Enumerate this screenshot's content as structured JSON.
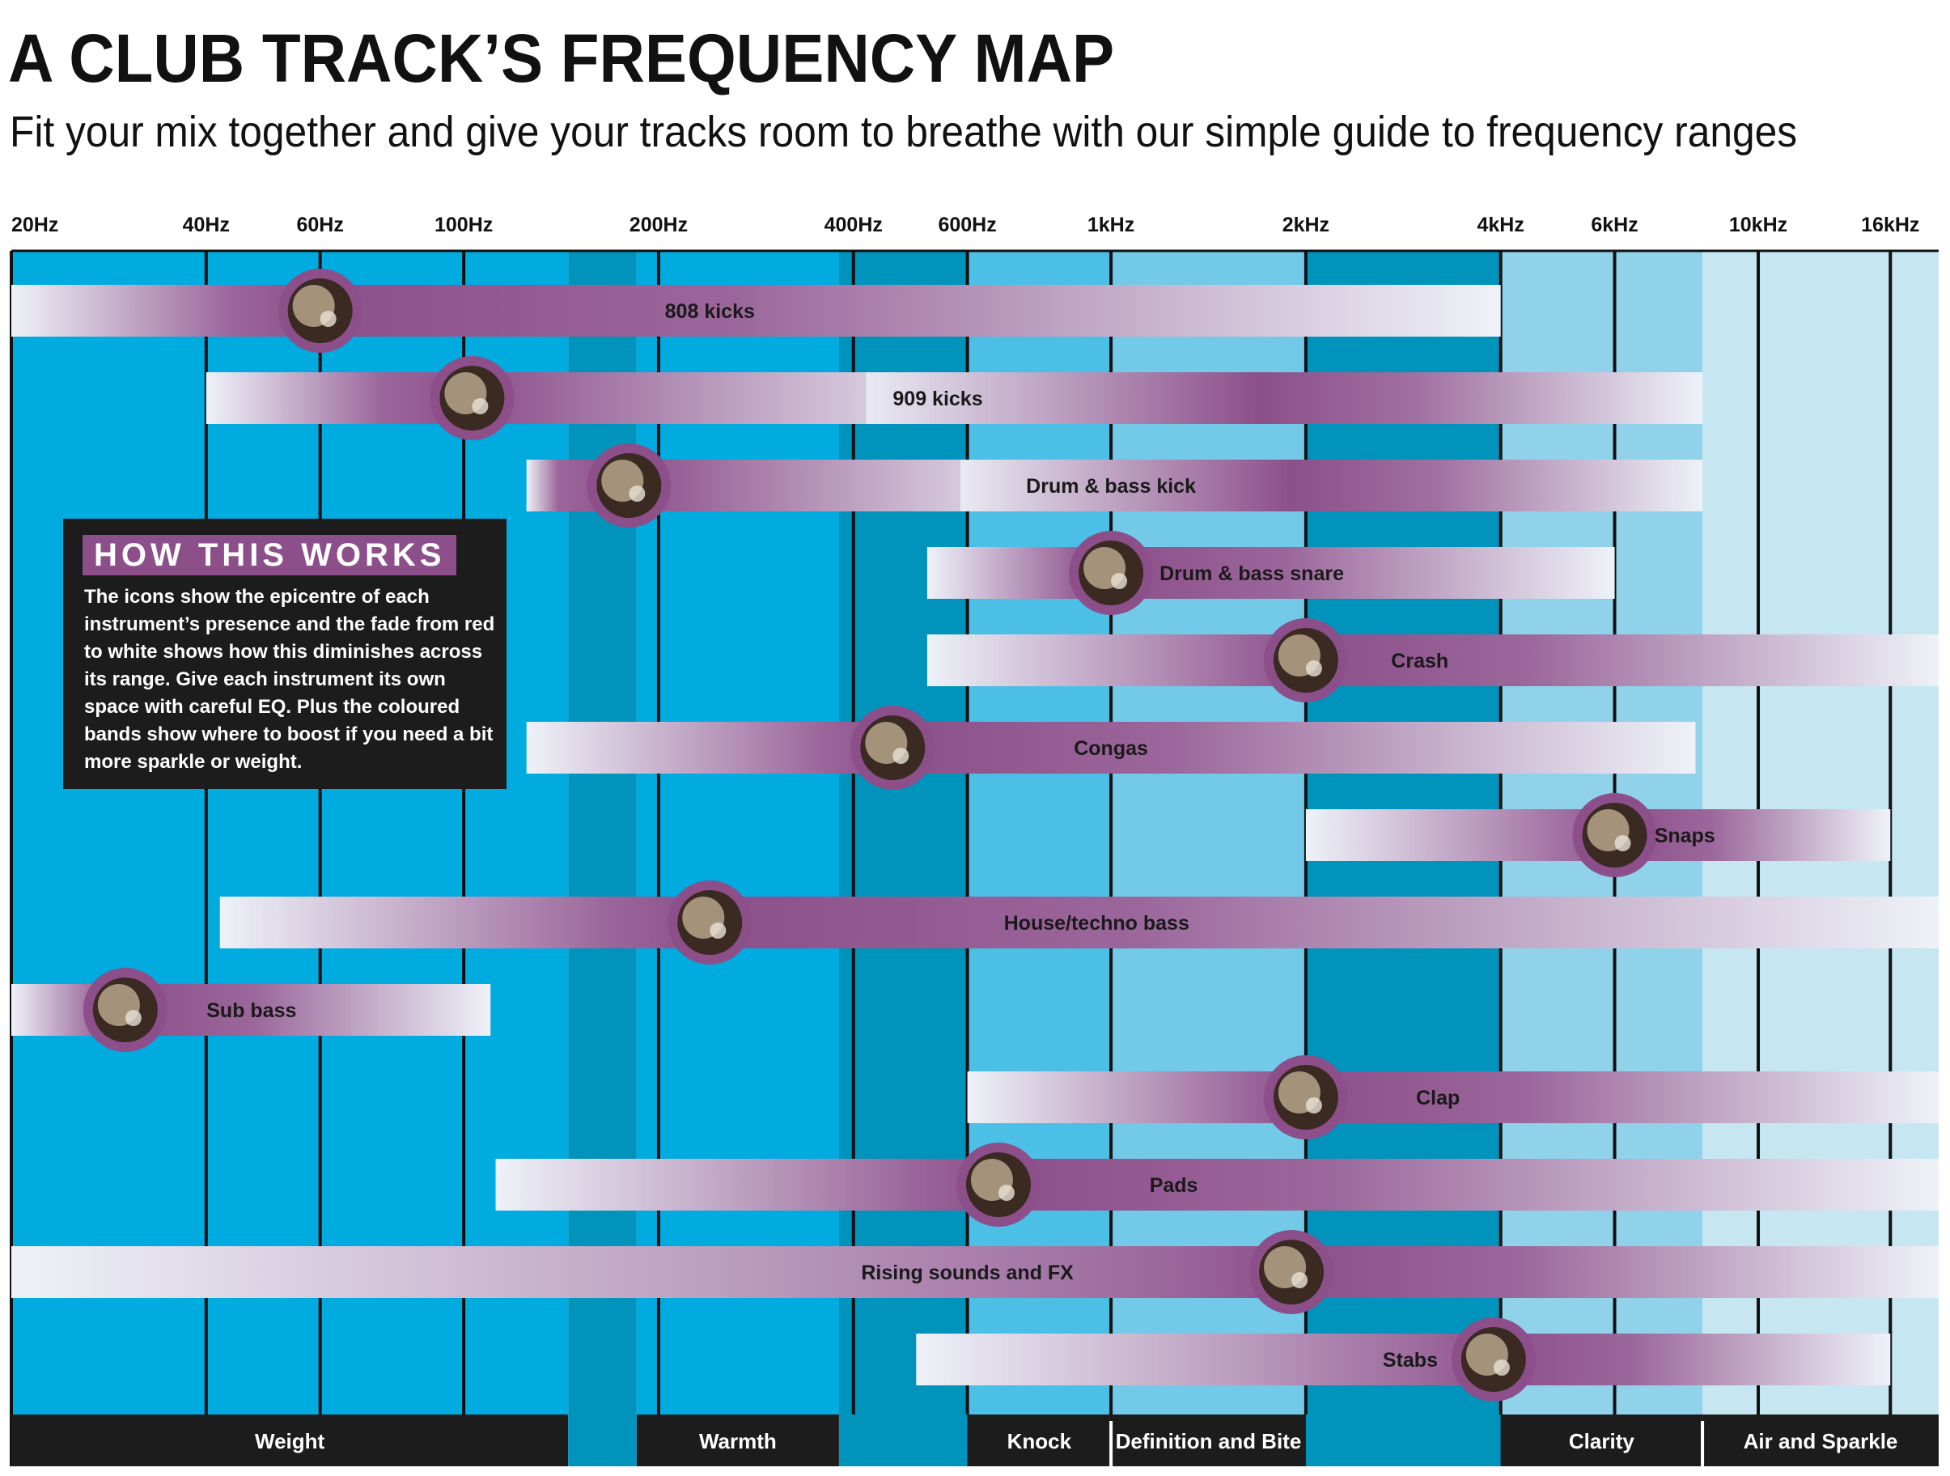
{
  "title": "A CLUB TRACK’S FREQUENCY MAP",
  "subtitle": "Fit your mix together and give your tracks room to breathe with our simple guide to frequency ranges",
  "info_box": {
    "heading": "HOW THIS WORKS",
    "body": "The icons show the epicentre of each instrument’s presence and the fade from red to white shows how this diminishes across its range. Give each instrument its own space with careful EQ. Plus the coloured bands show where to boost if you need a bit more sparkle or weight."
  },
  "colors": {
    "bar_purple": "#8c4f8a",
    "bar_white": "#eef2f8",
    "band_dark": "#0093bb",
    "band_mid": "#00abe0",
    "band_light": "#4cbfe6",
    "band_lighter": "#72c9e8",
    "band_pale": "#8fd2ea",
    "band_palest": "#c6e7f2",
    "footer": "#1c1c1c"
  },
  "chart_data": {
    "type": "range",
    "title": "A CLUB TRACK’S FREQUENCY MAP",
    "x_scale": "log",
    "x_unit": "Hz",
    "xlim": [
      20,
      19000
    ],
    "ticks": [
      {
        "label": "20Hz",
        "value": 20
      },
      {
        "label": "40Hz",
        "value": 40
      },
      {
        "label": "60Hz",
        "value": 60
      },
      {
        "label": "100Hz",
        "value": 100
      },
      {
        "label": "200Hz",
        "value": 200
      },
      {
        "label": "400Hz",
        "value": 400
      },
      {
        "label": "600Hz",
        "value": 600
      },
      {
        "label": "1kHz",
        "value": 1000
      },
      {
        "label": "2kHz",
        "value": 2000
      },
      {
        "label": "4kHz",
        "value": 4000
      },
      {
        "label": "6kHz",
        "value": 6000
      },
      {
        "label": "10kHz",
        "value": 10000
      },
      {
        "label": "16kHz",
        "value": 16000
      }
    ],
    "bands": [
      {
        "name": "Weight",
        "from": 20,
        "to": 145,
        "shade": "band_mid",
        "show_label": true
      },
      {
        "name": "",
        "from": 145,
        "to": 185,
        "shade": "band_dark",
        "show_label": false
      },
      {
        "name": "Warmth",
        "from": 185,
        "to": 380,
        "shade": "band_mid",
        "show_label": true
      },
      {
        "name": "",
        "from": 380,
        "to": 600,
        "shade": "band_dark",
        "show_label": false
      },
      {
        "name": "Knock",
        "from": 600,
        "to": 1000,
        "shade": "band_light",
        "show_label": true
      },
      {
        "name": "Definition and Bite",
        "from": 1000,
        "to": 2000,
        "shade": "band_lighter",
        "show_label": true
      },
      {
        "name": "",
        "from": 2000,
        "to": 4000,
        "shade": "band_dark",
        "show_label": false
      },
      {
        "name": "Clarity",
        "from": 4000,
        "to": 8200,
        "shade": "band_pale",
        "show_label": true
      },
      {
        "name": "Air and Sparkle",
        "from": 8200,
        "to": 19000,
        "shade": "band_palest",
        "show_label": true
      }
    ],
    "instruments": [
      {
        "name": "808 kicks",
        "low": 20,
        "high": 4000,
        "peak": 60,
        "label_at": 240
      },
      {
        "name": "909 kicks",
        "low": 40,
        "high": 8200,
        "peak": 103,
        "label_at": 540,
        "second_peak": 1700
      },
      {
        "name": "Drum & bass kick",
        "low": 125,
        "high": 8200,
        "peak": 180,
        "label_at": 1000,
        "second_peak": 1900
      },
      {
        "name": "Drum & bass snare",
        "low": 520,
        "high": 6000,
        "peak": 1000,
        "label_at": 1650
      },
      {
        "name": "Crash",
        "low": 520,
        "high": 19000,
        "peak": 2000,
        "label_at": 3000
      },
      {
        "name": "Congas",
        "low": 125,
        "high": 8000,
        "peak": 460,
        "label_at": 1000
      },
      {
        "name": "Snaps",
        "low": 2000,
        "high": 16000,
        "peak": 6000,
        "label_at": 7700
      },
      {
        "name": "House/techno bass",
        "low": 42,
        "high": 19000,
        "peak": 240,
        "label_at": 950
      },
      {
        "name": "Sub bass",
        "low": 20,
        "high": 110,
        "peak": 30,
        "label_at": 47
      },
      {
        "name": "Clap",
        "low": 600,
        "high": 19000,
        "peak": 2000,
        "label_at": 3200
      },
      {
        "name": "Pads",
        "low": 112,
        "high": 19000,
        "peak": 670,
        "label_at": 1250
      },
      {
        "name": "Rising sounds and FX",
        "low": 20,
        "high": 19000,
        "peak": 1900,
        "label_at": 600
      },
      {
        "name": "Stabs",
        "low": 500,
        "high": 16000,
        "peak": 3900,
        "label_at": 2900
      }
    ]
  }
}
